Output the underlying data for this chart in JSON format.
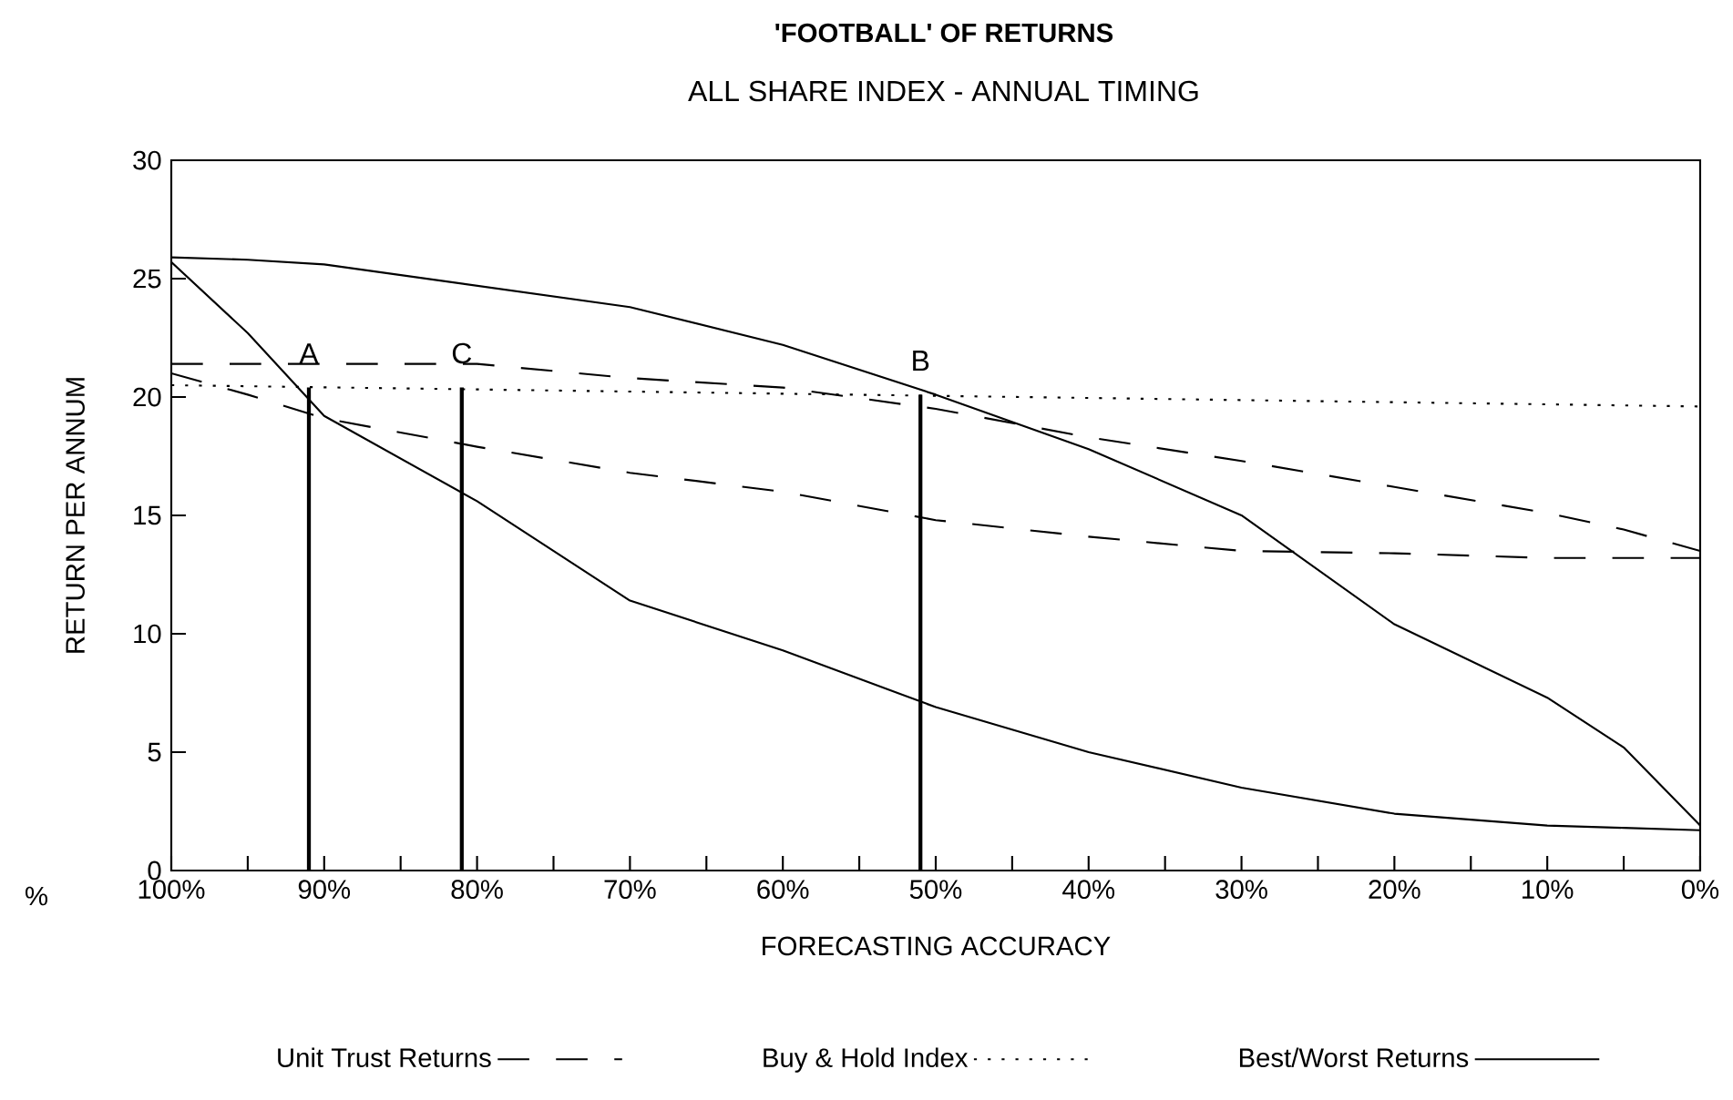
{
  "chart_data": {
    "type": "line",
    "title": "'FOOTBALL' OF RETURNS",
    "subtitle": "ALL SHARE INDEX - ANNUAL TIMING",
    "xlabel": "FORECASTING ACCURACY",
    "ylabel": "RETURN PER ANNUM",
    "x": [
      100,
      95,
      90,
      80,
      70,
      60,
      50,
      40,
      30,
      20,
      10,
      5,
      0
    ],
    "series": [
      {
        "name": "Unit Trust Returns",
        "color": "#000000",
        "line_style": "dashed",
        "values": [
          21.4,
          21.4,
          21.4,
          21.4,
          20.8,
          20.4,
          19.5,
          18.3,
          17.3,
          16.2,
          15.1,
          14.4,
          13.5
        ]
      },
      {
        "color": "#000000",
        "line_style": "dashed",
        "values": [
          21.0,
          20.1,
          19.1,
          17.9,
          16.8,
          16.0,
          14.8,
          14.1,
          13.5,
          13.4,
          13.2,
          13.2,
          13.2
        ]
      },
      {
        "name": "Buy & Hold Index",
        "color": "#000000",
        "line_style": "dotted",
        "values": [
          20.5,
          null,
          null,
          null,
          null,
          null,
          null,
          null,
          null,
          null,
          null,
          null,
          19.6
        ]
      },
      {
        "name": "Best/Worst Returns",
        "color": "#000000",
        "line_style": "solid",
        "values": [
          25.9,
          25.8,
          25.6,
          24.7,
          23.8,
          22.2,
          20.1,
          17.8,
          15.0,
          10.4,
          7.3,
          5.2,
          1.9
        ]
      },
      {
        "color": "#000000",
        "line_style": "solid",
        "values": [
          25.7,
          22.7,
          19.2,
          15.6,
          11.4,
          9.3,
          6.9,
          5.0,
          3.5,
          2.4,
          1.9,
          1.8,
          1.7
        ]
      }
    ],
    "xlim": [
      100,
      0
    ],
    "ylim": [
      0,
      30
    ],
    "xticks": [
      {
        "value": 100,
        "label": "100%"
      },
      {
        "value": 95,
        "label": null
      },
      {
        "value": 90,
        "label": "90%"
      },
      {
        "value": 85,
        "label": null
      },
      {
        "value": 80,
        "label": "80%"
      },
      {
        "value": 75,
        "label": null
      },
      {
        "value": 70,
        "label": "70%"
      },
      {
        "value": 65,
        "label": null
      },
      {
        "value": 60,
        "label": "60%"
      },
      {
        "value": 55,
        "label": null
      },
      {
        "value": 50,
        "label": "50%"
      },
      {
        "value": 45,
        "label": null
      },
      {
        "value": 40,
        "label": "40%"
      },
      {
        "value": 35,
        "label": null
      },
      {
        "value": 30,
        "label": "30%"
      },
      {
        "value": 25,
        "label": null
      },
      {
        "value": 20,
        "label": "20%"
      },
      {
        "value": 15,
        "label": null
      },
      {
        "value": 10,
        "label": "10%"
      },
      {
        "value": 5,
        "label": null
      },
      {
        "value": 0,
        "label": "0%"
      }
    ],
    "yticks": [
      0,
      5,
      10,
      15,
      20,
      25,
      30
    ],
    "annotations": [
      {
        "text": "A",
        "x": 91,
        "y": 20.4
      },
      {
        "text": "C",
        "x": 81,
        "y": 20.4
      },
      {
        "text": "B",
        "x": 51,
        "y": 20.1
      },
      "%"
    ],
    "legend": "bottom"
  }
}
